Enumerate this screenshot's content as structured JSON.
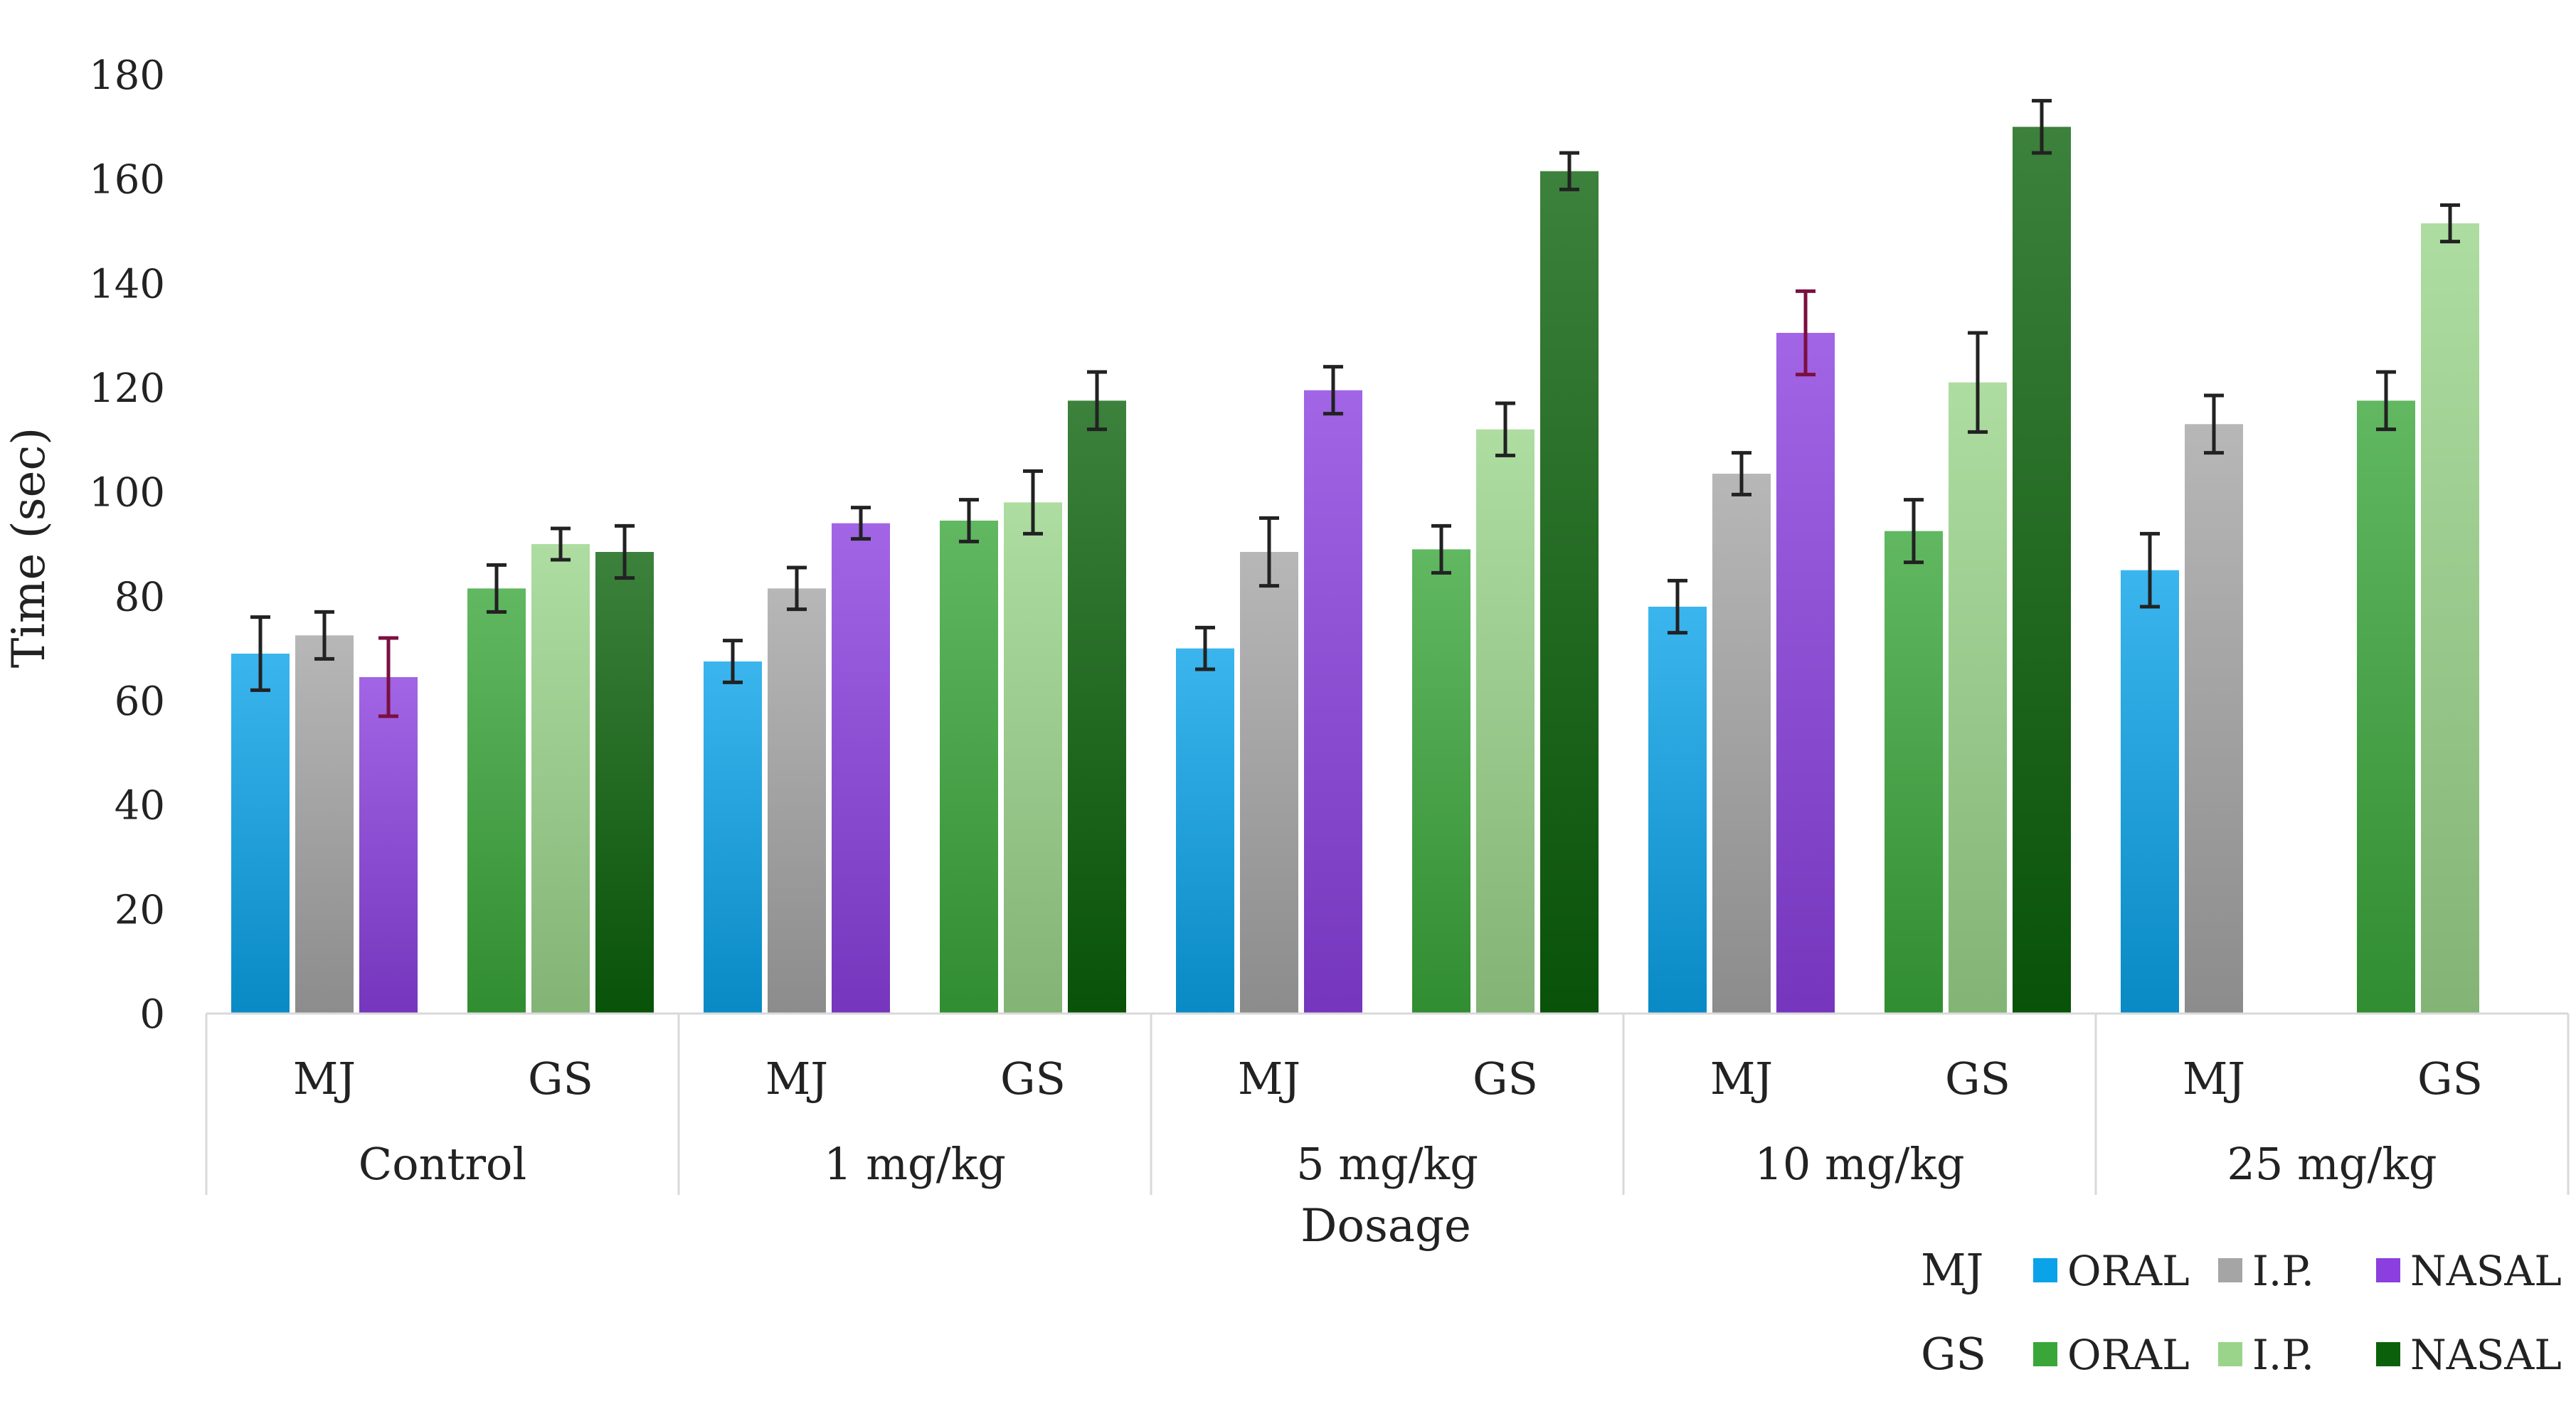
{
  "chart_data": {
    "type": "bar",
    "ylabel": "Time (sec)",
    "xlabel": "Dosage",
    "ylim": [
      0,
      180
    ],
    "ytick_step": 20,
    "grid": false,
    "groups": [
      "Control",
      "1 mg/kg",
      "5 mg/kg",
      "10 mg/kg",
      "25 mg/kg"
    ],
    "subgroups": [
      "MJ",
      "GS"
    ],
    "routes": [
      "ORAL",
      "I.P.",
      "NASAL"
    ],
    "values": {
      "MJ": {
        "ORAL": [
          69,
          67.5,
          70,
          78,
          85
        ],
        "I.P.": [
          72.5,
          81.5,
          88.5,
          103.5,
          113
        ],
        "NASAL": [
          64.5,
          94,
          119.5,
          130.5,
          null
        ]
      },
      "GS": {
        "ORAL": [
          81.5,
          94.5,
          89,
          92.5,
          117.5
        ],
        "I.P.": [
          90,
          98,
          112,
          121,
          151.5
        ],
        "NASAL": [
          88.5,
          117.5,
          161.5,
          170,
          null
        ]
      }
    },
    "errors": {
      "MJ": {
        "ORAL": [
          7,
          4,
          4,
          5,
          7
        ],
        "I.P.": [
          4.5,
          4,
          6.5,
          4,
          5.5
        ],
        "NASAL": [
          7.5,
          3,
          4.5,
          8,
          null
        ]
      },
      "GS": {
        "ORAL": [
          4.5,
          4,
          4.5,
          6,
          5.5
        ],
        "I.P.": [
          3,
          6,
          5,
          9.5,
          3.5
        ],
        "NASAL": [
          5,
          5.5,
          3.5,
          5,
          null
        ]
      }
    },
    "colors": {
      "MJ": {
        "ORAL": "#0aa2e8",
        "I.P.": "#a5a5a5",
        "NASAL": "#8a3fde"
      },
      "GS": {
        "ORAL": "#3aa63a",
        "I.P.": "#9ad48a",
        "NASAL": "#0b610b"
      }
    },
    "legend": {
      "placement": "bottom-right",
      "rows": [
        {
          "label": "MJ",
          "items": [
            "ORAL",
            "I.P.",
            "NASAL"
          ]
        },
        {
          "label": "GS",
          "items": [
            "ORAL",
            "I.P.",
            "NASAL"
          ]
        }
      ]
    }
  }
}
